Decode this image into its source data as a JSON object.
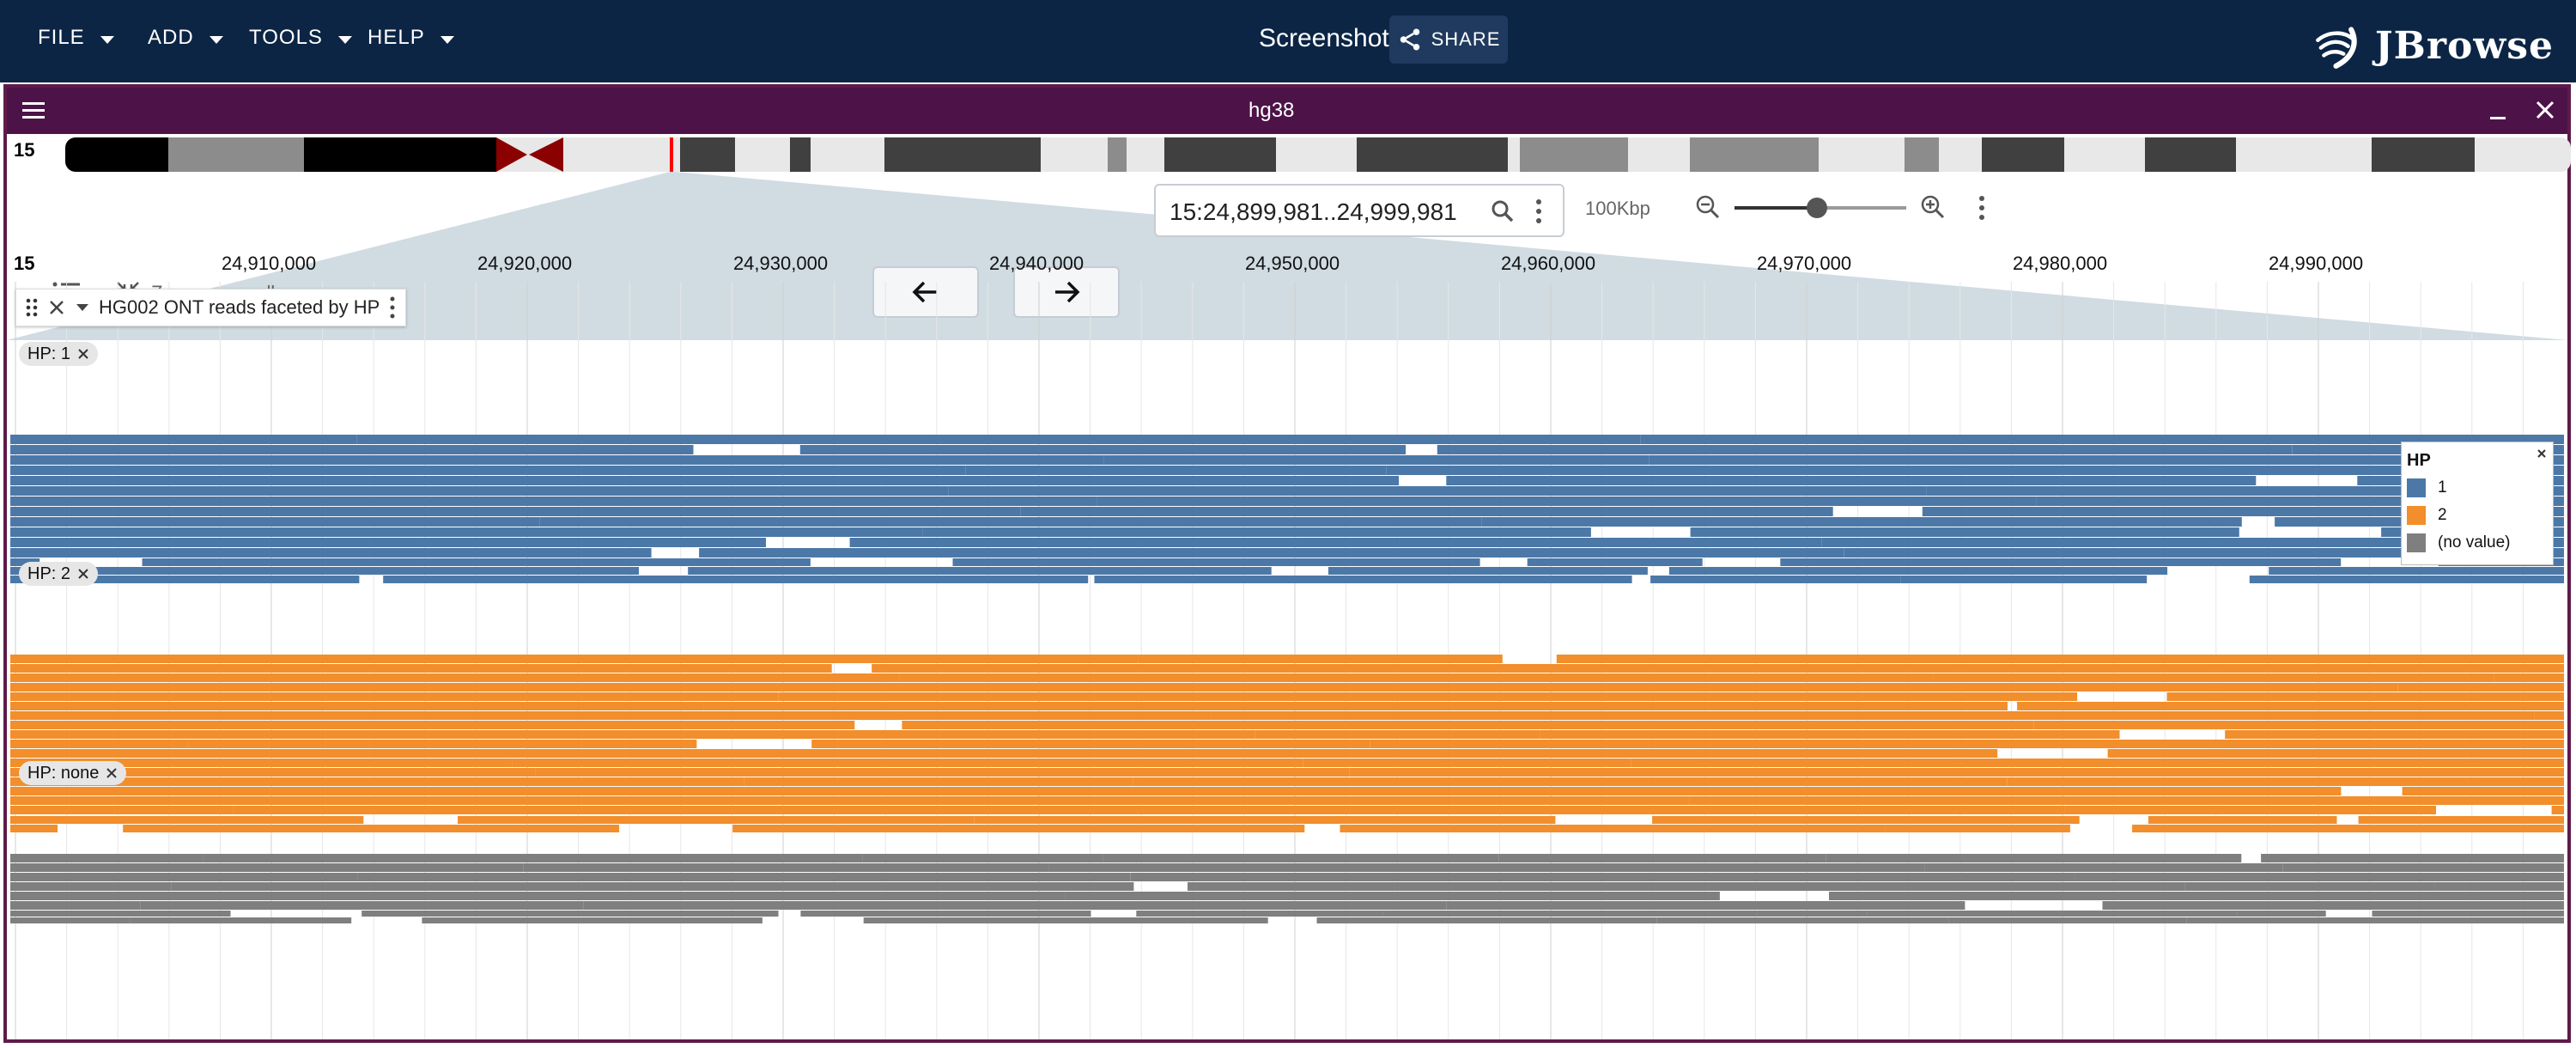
{
  "appbar": {
    "menus": [
      "FILE",
      "ADD",
      "TOOLS",
      "HELP"
    ],
    "session_name": "Screenshot",
    "share_label": "SHARE",
    "logo_text": "JBrowse"
  },
  "view": {
    "title": "hg38",
    "chrom_label": "15",
    "zoom_on_scroll_label": "Zoom on scroll",
    "location": "15:24,899,981..24,999,981",
    "zoom_scale_label": "100Kbp",
    "zoom_level": 0.48
  },
  "ruler": {
    "chrom_label": "15",
    "ticks": [
      "24,910,000",
      "24,920,000",
      "24,930,000",
      "24,940,000",
      "24,950,000",
      "24,960,000",
      "24,970,000",
      "24,980,000",
      "24,990,000"
    ]
  },
  "track": {
    "name": "HG002 ONT reads faceted by HP",
    "facets": [
      {
        "label": "HP: 1",
        "color": "#4c78a8"
      },
      {
        "label": "HP: 2",
        "color": "#f28e2b"
      },
      {
        "label": "HP: none",
        "color": "#7f7f7f"
      }
    ]
  },
  "legend": {
    "title": "HP",
    "items": [
      {
        "label": "1",
        "color": "#4c78a8"
      },
      {
        "label": "2",
        "color": "#f28e2b"
      },
      {
        "label": "(no value)",
        "color": "#7f7f7f"
      }
    ]
  },
  "colors": {
    "appbar": "#0c2545",
    "view_header": "#4d1348",
    "centromere": "#8b0000",
    "highlight": "#ff0000"
  }
}
